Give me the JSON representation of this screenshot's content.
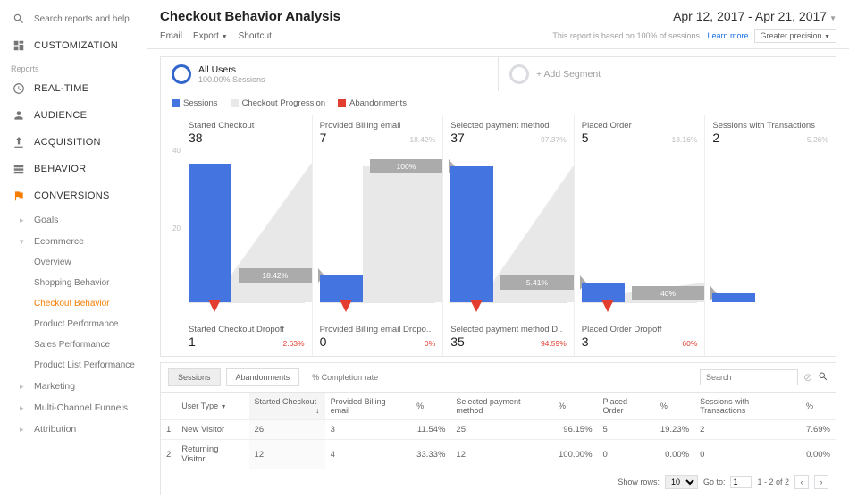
{
  "colors": {
    "sessions": "#4374e0",
    "progression": "#e8e8e8",
    "abandonments": "#e23d2f",
    "flow": "#ababab",
    "accent": "#f57c00"
  },
  "search_placeholder": "Search reports and help",
  "sidebar": {
    "customization": "CUSTOMIZATION",
    "reports_label": "Reports",
    "realtime": "REAL-TIME",
    "audience": "AUDIENCE",
    "acquisition": "ACQUISITION",
    "behavior": "BEHAVIOR",
    "conversions": "CONVERSIONS",
    "goals": "Goals",
    "ecommerce": "Ecommerce",
    "overview": "Overview",
    "shopping": "Shopping Behavior",
    "checkout": "Checkout Behavior",
    "product_perf": "Product Performance",
    "sales_perf": "Sales Performance",
    "product_list": "Product List Performance",
    "marketing": "Marketing",
    "mcf": "Multi-Channel Funnels",
    "attribution": "Attribution"
  },
  "title": "Checkout Behavior Analysis",
  "date_range": "Apr 12, 2017 - Apr 21, 2017",
  "actions": {
    "email": "Email",
    "export": "Export",
    "shortcut": "Shortcut"
  },
  "info": {
    "text": "This report is based on 100% of sessions.",
    "learn": "Learn more",
    "precision": "Greater precision"
  },
  "segments": {
    "all_users": "All Users",
    "all_users_sub": "100.00% Sessions",
    "add": "+ Add Segment"
  },
  "legend": {
    "sessions": "Sessions",
    "progression": "Checkout Progression",
    "abandonments": "Abandonments"
  },
  "yaxis": {
    "top": "40",
    "mid": "20"
  },
  "funnel": [
    {
      "name": "Started Checkout",
      "value": "38",
      "pct": "",
      "bar": 155,
      "flow": "18.42%",
      "drop_name": "Started Checkout Dropoff",
      "drop_val": "1",
      "drop_pct": "2.63%"
    },
    {
      "name": "Provided Billing email",
      "value": "7",
      "pct": "18.42%",
      "bar": 30,
      "flow": "100%",
      "drop_name": "Provided Billing email Dropo..",
      "drop_val": "0",
      "drop_pct": "0%"
    },
    {
      "name": "Selected payment method",
      "value": "37",
      "pct": "97.37%",
      "bar": 152,
      "flow": "5.41%",
      "drop_name": "Selected payment method D..",
      "drop_val": "35",
      "drop_pct": "94.59%"
    },
    {
      "name": "Placed Order",
      "value": "5",
      "pct": "13.16%",
      "bar": 22,
      "flow": "40%",
      "drop_name": "Placed Order Dropoff",
      "drop_val": "3",
      "drop_pct": "60%"
    },
    {
      "name": "Sessions with Transactions",
      "value": "2",
      "pct": "5.26%",
      "bar": 10,
      "flow": "",
      "drop_name": "",
      "drop_val": "",
      "drop_pct": ""
    }
  ],
  "tabs": {
    "sessions": "Sessions",
    "abandon": "Abandonments",
    "completion": "% Completion rate"
  },
  "table": {
    "search_placeholder": "Search",
    "headers": {
      "user_type": "User Type",
      "c0": "Started Checkout",
      "c1": "Provided Billing email",
      "c2": "Selected payment method",
      "c3": "Placed Order",
      "c4": "Sessions with Transactions",
      "pct": "%"
    },
    "rows": [
      {
        "n": "1",
        "ut": "New Visitor",
        "v0": "26",
        "v1": "3",
        "p1": "11.54%",
        "v2": "25",
        "p2": "96.15%",
        "v3": "5",
        "p3": "19.23%",
        "v4": "2",
        "p4": "7.69%"
      },
      {
        "n": "2",
        "ut": "Returning Visitor",
        "v0": "12",
        "v1": "4",
        "p1": "33.33%",
        "v2": "12",
        "p2": "100.00%",
        "v3": "0",
        "p3": "0.00%",
        "v4": "0",
        "p4": "0.00%"
      }
    ]
  },
  "pager": {
    "show_rows": "Show rows:",
    "rows": "10",
    "goto": "Go to:",
    "page": "1",
    "range": "1 - 2 of 2"
  }
}
